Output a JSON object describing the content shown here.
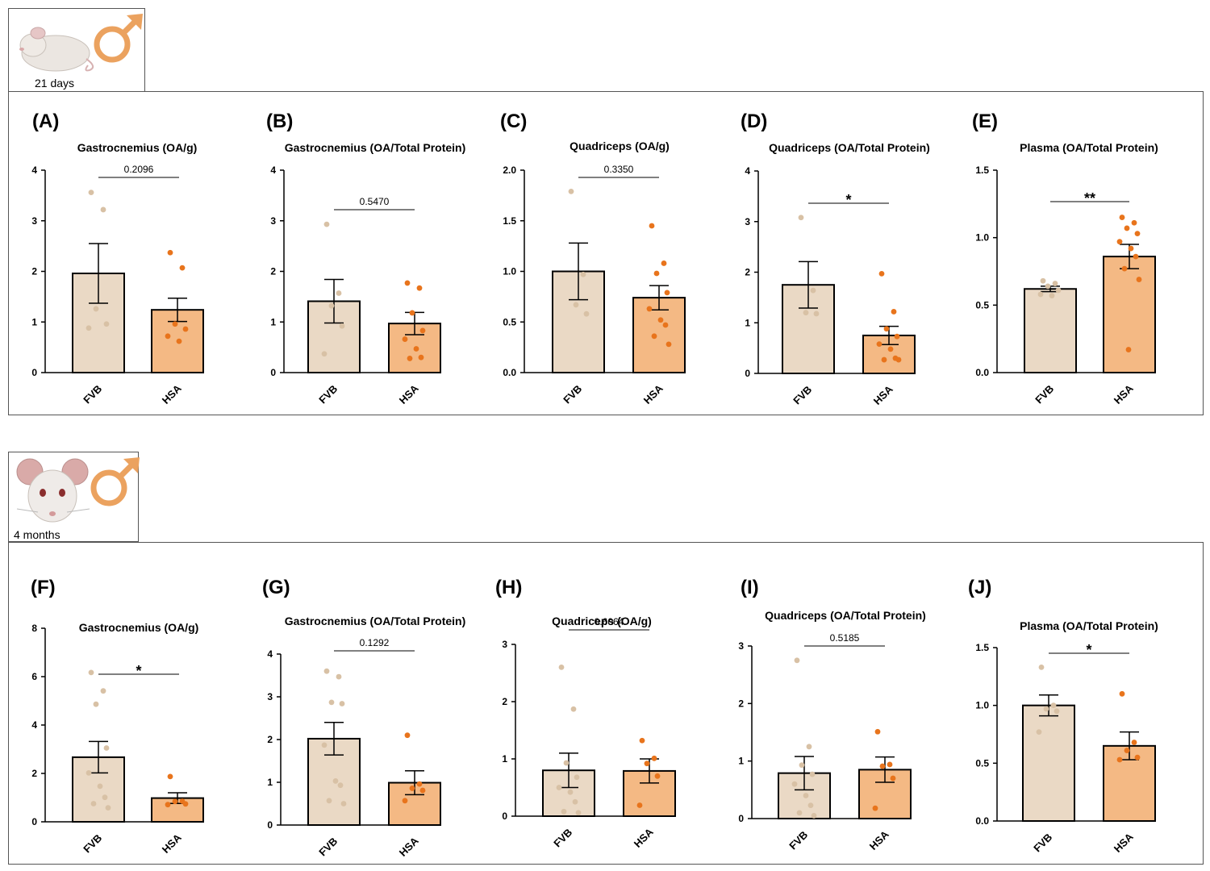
{
  "colors": {
    "fvb_fill": "#ead9c5",
    "fvb_dot": "#d8c1a5",
    "hsa_fill": "#f4b984",
    "hsa_dot": "#e8741c",
    "male_symbol": "#eba25f"
  },
  "groups": [
    {
      "age_label": "21 days",
      "icon": "young-mouse-icon"
    },
    {
      "age_label": "4 months",
      "icon": "adult-mouse-face-icon"
    }
  ],
  "chart_data": [
    {
      "type": "bar",
      "panel": "(A)",
      "title": "Gastrocnemius (OA/g)",
      "categories": [
        "FVB",
        "HSA"
      ],
      "ylim": [
        0,
        4
      ],
      "yticks": [
        "0",
        "1",
        "2",
        "3",
        "4"
      ],
      "values": [
        1.96,
        1.24
      ],
      "sem": [
        0.59,
        0.23
      ],
      "points": [
        [
          3.56,
          3.22,
          1.26,
          0.96,
          0.88
        ],
        [
          2.37,
          2.07,
          0.96,
          0.86,
          0.72,
          0.62
        ]
      ],
      "significance": "0.2096"
    },
    {
      "type": "bar",
      "panel": "(B)",
      "title": "Gastrocnemius (OA/Total Protein)",
      "categories": [
        "FVB",
        "HSA"
      ],
      "ylim": [
        0,
        4
      ],
      "yticks": [
        "0",
        "1",
        "2",
        "3",
        "4"
      ],
      "values": [
        1.41,
        0.97
      ],
      "sem": [
        0.43,
        0.22
      ],
      "points": [
        [
          2.93,
          1.57,
          1.32,
          0.92,
          0.37
        ],
        [
          1.77,
          1.67,
          1.18,
          0.83,
          0.66,
          0.47,
          0.3,
          0.28
        ]
      ],
      "significance": "0.5470"
    },
    {
      "type": "bar",
      "panel": "(C)",
      "title": "Quadriceps (OA/g)",
      "categories": [
        "FVB",
        "HSA"
      ],
      "ylim": [
        0,
        2.0
      ],
      "yticks": [
        "0.0",
        "0.5",
        "1.0",
        "1.5",
        "2.0"
      ],
      "values": [
        1.0,
        0.74
      ],
      "sem": [
        0.28,
        0.12
      ],
      "points": [
        [
          1.79,
          0.97,
          0.67,
          0.58
        ],
        [
          1.45,
          1.08,
          0.98,
          0.79,
          0.63,
          0.52,
          0.47,
          0.36,
          0.28
        ]
      ],
      "significance": "0.3350"
    },
    {
      "type": "bar",
      "panel": "(D)",
      "title": "Quadriceps (OA/Total Protein)",
      "categories": [
        "FVB",
        "HSA"
      ],
      "ylim": [
        0,
        4
      ],
      "yticks": [
        "0",
        "1",
        "2",
        "3",
        "4"
      ],
      "values": [
        1.75,
        0.75
      ],
      "sem": [
        0.46,
        0.18
      ],
      "points": [
        [
          3.08,
          1.64,
          1.2,
          1.18
        ],
        [
          1.97,
          1.22,
          0.88,
          0.73,
          0.58,
          0.48,
          0.3,
          0.27,
          0.27
        ]
      ],
      "significance": "*"
    },
    {
      "type": "bar",
      "panel": "(E)",
      "title": "Plasma (OA/Total Protein)",
      "categories": [
        "FVB",
        "HSA"
      ],
      "ylim": [
        0,
        1.5
      ],
      "yticks": [
        "0.0",
        "0.5",
        "1.0",
        "1.5"
      ],
      "values": [
        0.62,
        0.86
      ],
      "sem": [
        0.02,
        0.09
      ],
      "points": [
        [
          0.68,
          0.66,
          0.64,
          0.61,
          0.58,
          0.57
        ],
        [
          1.15,
          1.11,
          1.07,
          1.03,
          0.97,
          0.92,
          0.86,
          0.77,
          0.69,
          0.17
        ]
      ],
      "significance": "**"
    },
    {
      "type": "bar",
      "panel": "(F)",
      "title": "Gastrocnemius (OA/g)",
      "categories": [
        "FVB",
        "HSA"
      ],
      "ylim": [
        0,
        8
      ],
      "yticks": [
        "0",
        "2",
        "4",
        "6",
        "8"
      ],
      "values": [
        2.67,
        0.98
      ],
      "sem": [
        0.65,
        0.22
      ],
      "points": [
        [
          6.17,
          5.41,
          4.86,
          3.05,
          2.02,
          1.47,
          1.01,
          0.75,
          0.58
        ],
        [
          1.87,
          0.85,
          0.84,
          0.74,
          0.71
        ]
      ],
      "significance": "*"
    },
    {
      "type": "bar",
      "panel": "(G)",
      "title": "Gastrocnemius (OA/Total Protein)",
      "categories": [
        "FVB",
        "HSA"
      ],
      "ylim": [
        0,
        4
      ],
      "yticks": [
        "0",
        "1",
        "2",
        "3",
        "4"
      ],
      "values": [
        2.02,
        0.99
      ],
      "sem": [
        0.38,
        0.28
      ],
      "points": [
        [
          3.6,
          3.47,
          2.87,
          2.84,
          1.87,
          1.03,
          0.93,
          0.57,
          0.5
        ],
        [
          2.1,
          0.96,
          0.86,
          0.81,
          0.57
        ]
      ],
      "significance": "0.1292"
    },
    {
      "type": "bar",
      "panel": "(H)",
      "title": "Quadriceps (OA/g)",
      "categories": [
        "FVB",
        "HSA"
      ],
      "ylim": [
        0,
        3
      ],
      "yticks": [
        "0",
        "1",
        "2",
        "3"
      ],
      "values": [
        0.8,
        0.79
      ],
      "sem": [
        0.3,
        0.21
      ],
      "points": [
        [
          2.6,
          1.87,
          0.93,
          0.68,
          0.5,
          0.42,
          0.25,
          0.08,
          0.06
        ],
        [
          1.32,
          1.01,
          0.92,
          0.7,
          0.19
        ]
      ],
      "significance": "0.6064"
    },
    {
      "type": "bar",
      "panel": "(I)",
      "title": "Quadriceps (OA/Total Protein)",
      "categories": [
        "FVB",
        "HSA"
      ],
      "ylim": [
        0,
        3
      ],
      "yticks": [
        "0",
        "1",
        "2",
        "3"
      ],
      "values": [
        0.79,
        0.85
      ],
      "sem": [
        0.29,
        0.22
      ],
      "points": [
        [
          2.75,
          1.25,
          0.93,
          0.77,
          0.6,
          0.4,
          0.23,
          0.1,
          0.05
        ],
        [
          1.51,
          0.94,
          0.91,
          0.7,
          0.18
        ]
      ],
      "significance": "0.5185"
    },
    {
      "type": "bar",
      "panel": "(J)",
      "title": "Plasma (OA/Total Protein)",
      "categories": [
        "FVB",
        "HSA"
      ],
      "ylim": [
        0,
        1.5
      ],
      "yticks": [
        "0.0",
        "0.5",
        "1.0",
        "1.5"
      ],
      "values": [
        1.0,
        0.65
      ],
      "sem": [
        0.09,
        0.12
      ],
      "points": [
        [
          1.33,
          1.0,
          0.97,
          0.95,
          0.77
        ],
        [
          1.1,
          0.68,
          0.61,
          0.55,
          0.53
        ]
      ],
      "significance": "*"
    }
  ]
}
